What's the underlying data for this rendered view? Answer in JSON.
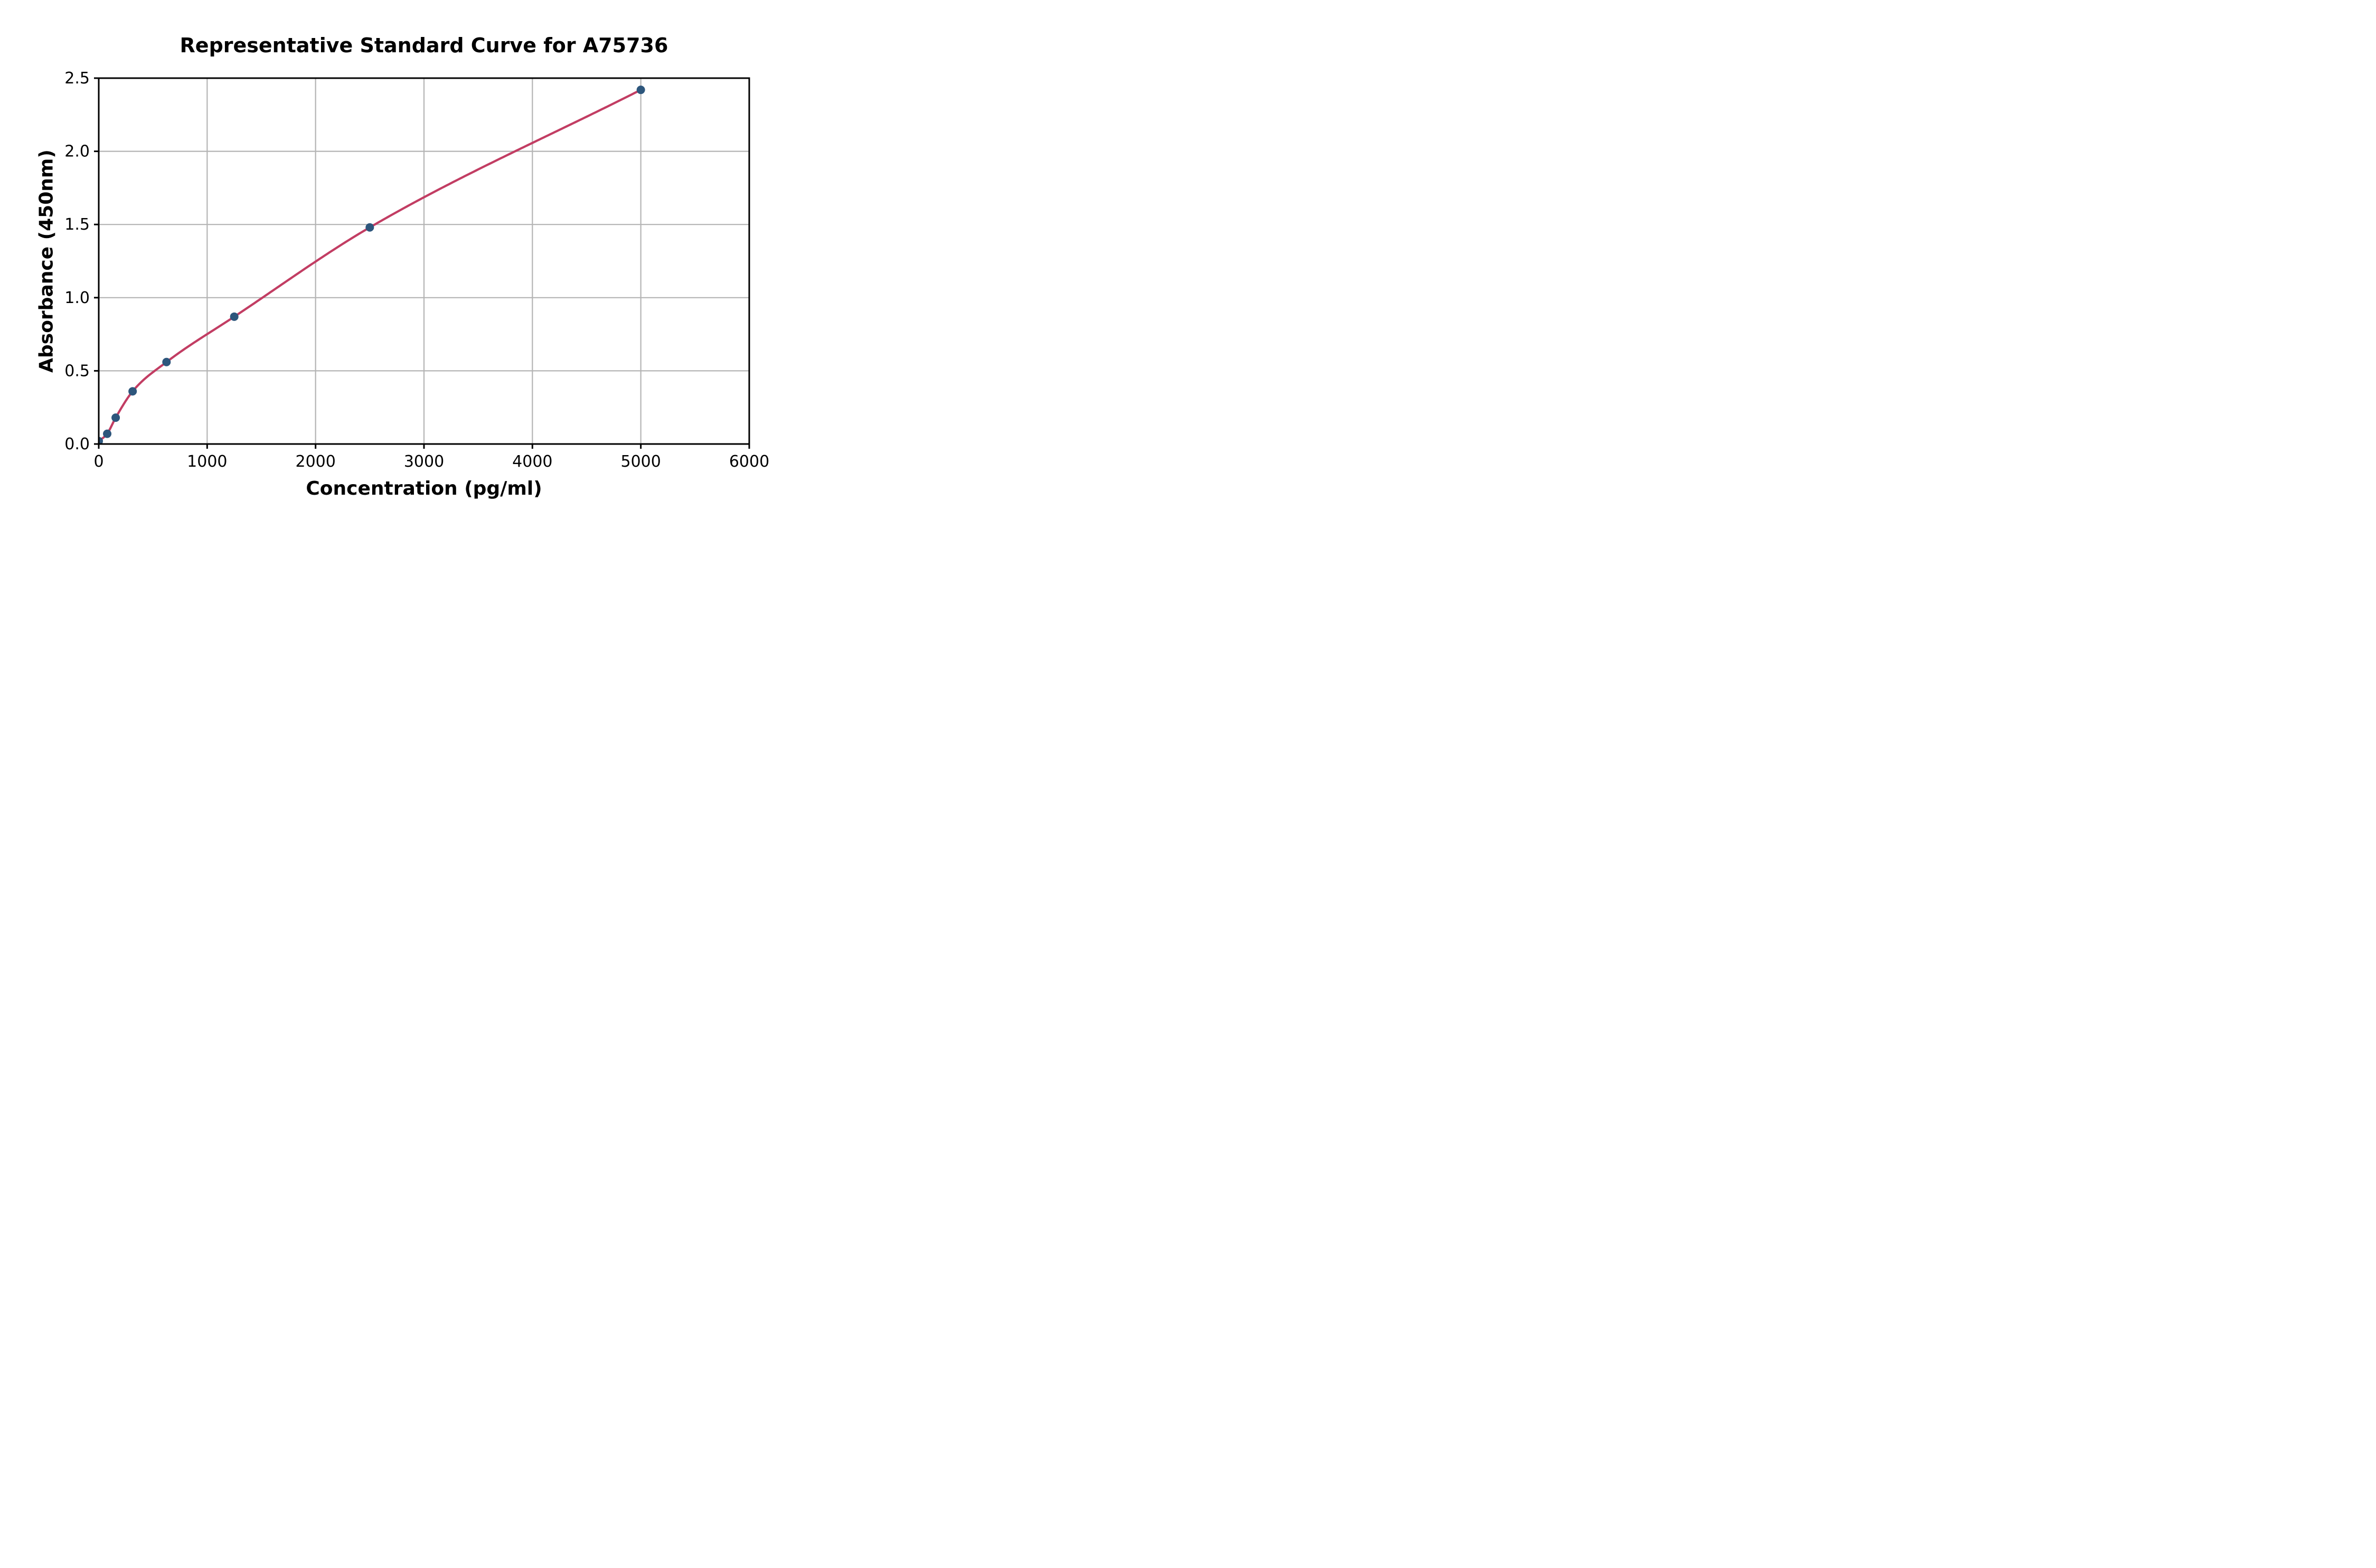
{
  "figure": {
    "title": "Representative Standard Curve for A75736",
    "x_axis_label": "Concentration (pg/ml)",
    "y_axis_label": "Absorbance (450nm)"
  },
  "chart_data": {
    "type": "scatter",
    "title": "Representative Standard Curve for A75736",
    "xlabel": "Concentration (pg/ml)",
    "ylabel": "Absorbance (450nm)",
    "xlim": [
      0,
      6000
    ],
    "ylim": [
      0,
      2.5
    ],
    "xticks": [
      0,
      1000,
      2000,
      3000,
      4000,
      5000,
      6000
    ],
    "xtick_labels": [
      "0",
      "1000",
      "2000",
      "3000",
      "4000",
      "5000",
      "6000"
    ],
    "yticks": [
      0,
      0.5,
      1.0,
      1.5,
      2.0,
      2.5
    ],
    "ytick_labels": [
      "0.0",
      "0.5",
      "1.0",
      "1.5",
      "2.0",
      "2.5"
    ],
    "grid": true,
    "legend": "none",
    "series": [
      {
        "name": "standards",
        "style": "scatter-with-fit-curve",
        "x": [
          0,
          78.1,
          156.3,
          312.5,
          625,
          1250,
          2500,
          5000
        ],
        "y": [
          0.02,
          0.07,
          0.18,
          0.36,
          0.56,
          0.87,
          1.48,
          2.42
        ]
      }
    ],
    "colors": {
      "marker": "#2d567c",
      "curve": "#c23d63",
      "grid": "#b4b4b4",
      "axis": "#000000",
      "background": "#ffffff"
    }
  }
}
